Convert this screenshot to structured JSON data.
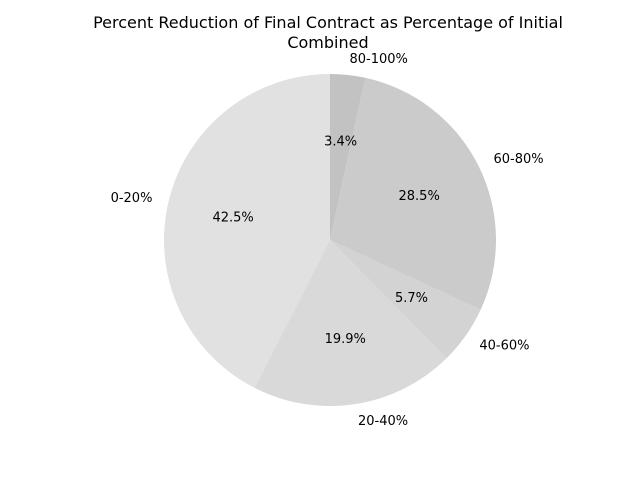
{
  "chart_data": {
    "type": "pie",
    "title_line1": "Percent Reduction of Final Contract as Percentage of Initial",
    "title_line2": "Combined",
    "categories": [
      "0-20%",
      "20-40%",
      "40-60%",
      "60-80%",
      "80-100%"
    ],
    "values": [
      42.5,
      19.9,
      5.7,
      28.5,
      3.4
    ],
    "percent_labels": [
      "42.5%",
      "19.9%",
      "5.7%",
      "28.5%",
      "3.4%"
    ],
    "colors": [
      "#e1e1e1",
      "#d9d9d9",
      "#d3d3d3",
      "#cbcbcb",
      "#c2c2c2"
    ],
    "start_angle_deg": 90,
    "direction": "counterclockwise",
    "legend": "none"
  }
}
